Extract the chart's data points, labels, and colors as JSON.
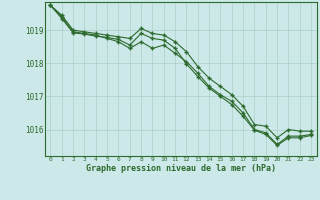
{
  "title": "Graphe pression niveau de la mer (hPa)",
  "background_color": "#cce8e8",
  "grid_color": "#b0d4cc",
  "line_color": "#2d6a2d",
  "spine_color": "#2d6a2d",
  "xlim": [
    -0.5,
    23.5
  ],
  "ylim": [
    1015.2,
    1019.85
  ],
  "yticks": [
    1016,
    1017,
    1018,
    1019
  ],
  "xticks": [
    0,
    1,
    2,
    3,
    4,
    5,
    6,
    7,
    8,
    9,
    10,
    11,
    12,
    13,
    14,
    15,
    16,
    17,
    18,
    19,
    20,
    21,
    22,
    23
  ],
  "series1": [
    1019.75,
    1019.45,
    1019.0,
    1018.95,
    1018.9,
    1018.85,
    1018.8,
    1018.75,
    1019.05,
    1018.9,
    1018.85,
    1018.65,
    1018.35,
    1017.9,
    1017.55,
    1017.3,
    1017.05,
    1016.7,
    1016.15,
    1016.1,
    1015.75,
    1016.0,
    1015.95,
    1015.95
  ],
  "series2": [
    1019.75,
    1019.4,
    1018.95,
    1018.9,
    1018.85,
    1018.75,
    1018.65,
    1018.45,
    1018.65,
    1018.45,
    1018.55,
    1018.3,
    1018.05,
    1017.7,
    1017.3,
    1017.05,
    1016.85,
    1016.5,
    1016.0,
    1015.9,
    1015.55,
    1015.8,
    1015.8,
    1015.85
  ],
  "series3": [
    1019.75,
    1019.35,
    1018.92,
    1018.88,
    1018.82,
    1018.78,
    1018.72,
    1018.55,
    1018.9,
    1018.75,
    1018.7,
    1018.45,
    1017.98,
    1017.6,
    1017.25,
    1017.0,
    1016.75,
    1016.4,
    1015.98,
    1015.85,
    1015.52,
    1015.75,
    1015.75,
    1015.82
  ]
}
